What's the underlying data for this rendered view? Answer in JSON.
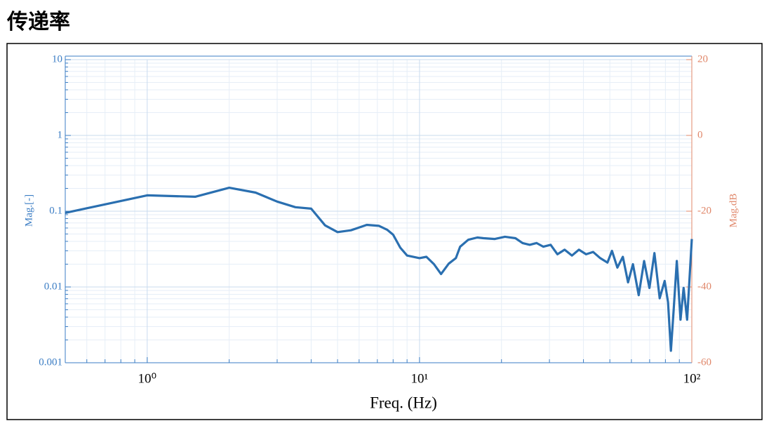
{
  "header": {
    "title": "传递率"
  },
  "chart_data": {
    "type": "line",
    "xlabel": "Freq. (Hz)",
    "ylabel": "Mag.[-]",
    "y2label": "Mag.dB",
    "xscale": "log",
    "yscale": "log",
    "grid": true,
    "minor_grid": true,
    "xlim": [
      0.5,
      100
    ],
    "ylim": [
      0.001,
      10
    ],
    "y2lim": [
      -60,
      20
    ],
    "xticks": [
      {
        "value": 1,
        "label": "10⁰"
      },
      {
        "value": 10,
        "label": "10¹"
      },
      {
        "value": 100,
        "label": "10²"
      }
    ],
    "yticks": [
      0.001,
      0.01,
      0.1,
      1,
      10
    ],
    "y2ticks": [
      -60,
      -40,
      -20,
      0,
      20
    ],
    "left_axis_color": "#3b7dc4",
    "right_axis_color": "#e0876a",
    "x": [
      0.5,
      1.0,
      1.5,
      2.0,
      2.5,
      3.0,
      3.5,
      4.0,
      4.5,
      5.0,
      5.6,
      6.4,
      7.1,
      7.6,
      8.0,
      8.5,
      9.0,
      10,
      10.6,
      11.3,
      12.0,
      12.8,
      13.6,
      14.1,
      15.1,
      16.3,
      17.2,
      18.9,
      20.6,
      22.5,
      23.9,
      25.4,
      26.9,
      28.5,
      30.3,
      32.1,
      34.1,
      36.3,
      38.5,
      40.9,
      43.4,
      46.1,
      49.0,
      50.9,
      53.3,
      55.8,
      58.3,
      60.8,
      63.8,
      66.8,
      69.9,
      72.9,
      76.2,
      79.5,
      81.8,
      83.8,
      85.8,
      88.1,
      90.9,
      93.3,
      96.1,
      100
    ],
    "series": [
      {
        "color": "#2a6fb0",
        "values": [
          0.095,
          0.162,
          0.155,
          0.204,
          0.176,
          0.134,
          0.113,
          0.108,
          0.065,
          0.053,
          0.056,
          0.066,
          0.064,
          0.057,
          0.049,
          0.033,
          0.026,
          0.024,
          0.025,
          0.02,
          0.0148,
          0.0203,
          0.024,
          0.034,
          0.042,
          0.045,
          0.044,
          0.043,
          0.046,
          0.044,
          0.038,
          0.036,
          0.038,
          0.034,
          0.036,
          0.027,
          0.031,
          0.026,
          0.031,
          0.027,
          0.029,
          0.024,
          0.021,
          0.03,
          0.018,
          0.025,
          0.0115,
          0.02,
          0.0078,
          0.022,
          0.0097,
          0.028,
          0.0071,
          0.012,
          0.0063,
          0.00144,
          0.0051,
          0.022,
          0.0037,
          0.0097,
          0.0037,
          0.043
        ]
      }
    ]
  }
}
